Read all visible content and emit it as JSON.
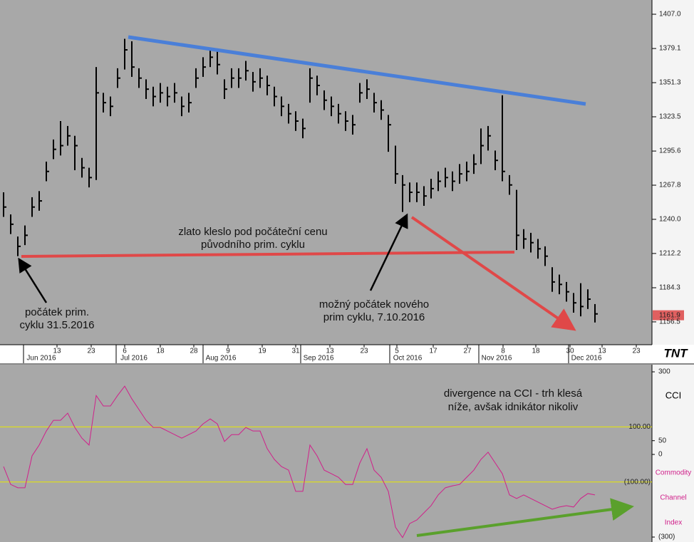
{
  "chart_data": [
    {
      "type": "ohlc",
      "annotations": [
        [
          "zlato kleslo pod počáteční cenu",
          "původního prim. cyklu"
        ],
        [
          "počátek prim.",
          "cyklu 31.5.2016"
        ],
        [
          "možný počátek nového",
          "prim cyklu, 7.10.2016"
        ]
      ],
      "high": [
        1262,
        1244,
        1226,
        1235,
        1258,
        1263,
        1287,
        1305,
        1320,
        1316,
        1308,
        1290,
        1282,
        1364,
        1343,
        1340,
        1363,
        1387,
        1385,
        1363,
        1354,
        1348,
        1351,
        1348,
        1351,
        1340,
        1343,
        1363,
        1372,
        1380,
        1377,
        1354,
        1363,
        1363,
        1369,
        1360,
        1363,
        1357,
        1348,
        1340,
        1334,
        1328,
        1322,
        1363,
        1357,
        1345,
        1340,
        1334,
        1328,
        1325,
        1351,
        1354,
        1343,
        1337,
        1325,
        1300,
        1276,
        1270,
        1270,
        1267,
        1273,
        1279,
        1282,
        1279,
        1285,
        1287,
        1293,
        1314,
        1316,
        1296,
        1341,
        1276,
        1264,
        1232,
        1229,
        1224,
        1218,
        1201,
        1195,
        1189,
        1180,
        1188,
        1183,
        1171
      ],
      "low": [
        1242,
        1228,
        1210,
        1219,
        1242,
        1247,
        1271,
        1289,
        1292,
        1300,
        1280,
        1274,
        1266,
        1272,
        1327,
        1324,
        1347,
        1362,
        1356,
        1347,
        1338,
        1332,
        1335,
        1332,
        1335,
        1324,
        1327,
        1347,
        1356,
        1364,
        1358,
        1338,
        1347,
        1347,
        1353,
        1344,
        1347,
        1341,
        1332,
        1324,
        1318,
        1312,
        1306,
        1335,
        1341,
        1329,
        1324,
        1318,
        1312,
        1309,
        1335,
        1338,
        1327,
        1321,
        1295,
        1269,
        1246,
        1254,
        1254,
        1251,
        1257,
        1263,
        1266,
        1263,
        1269,
        1271,
        1277,
        1285,
        1296,
        1280,
        1271,
        1260,
        1215,
        1216,
        1213,
        1208,
        1202,
        1181,
        1179,
        1173,
        1164,
        1161,
        1167,
        1156
      ],
      "close": [
        1250,
        1236,
        1218,
        1227,
        1250,
        1255,
        1279,
        1297,
        1300,
        1308,
        1300,
        1282,
        1274,
        1343,
        1335,
        1332,
        1355,
        1378,
        1364,
        1355,
        1346,
        1340,
        1343,
        1340,
        1343,
        1332,
        1335,
        1355,
        1364,
        1372,
        1366,
        1346,
        1355,
        1355,
        1361,
        1352,
        1355,
        1349,
        1340,
        1332,
        1326,
        1320,
        1314,
        1355,
        1349,
        1337,
        1332,
        1326,
        1320,
        1317,
        1343,
        1346,
        1335,
        1329,
        1317,
        1277,
        1268,
        1262,
        1262,
        1259,
        1265,
        1271,
        1274,
        1271,
        1277,
        1279,
        1285,
        1300,
        1308,
        1288,
        1279,
        1268,
        1227,
        1224,
        1221,
        1216,
        1210,
        1189,
        1187,
        1181,
        1172,
        1169,
        1175,
        1163
      ],
      "color": "#000000",
      "ylim": [
        1137.9,
        1418.6
      ],
      "yticks": [
        {
          "value": 1407,
          "label": "1407.0"
        },
        1379.1,
        1351.3,
        1323.5,
        1295.6,
        1267.8,
        {
          "value": 1240,
          "label": "1240.0"
        },
        1212.2,
        1184.3,
        1156.5
      ],
      "last_price": 1161.9,
      "xlim": [
        -0.5,
        91
      ],
      "xticks": [
        {
          "value": 7.5,
          "label": "13"
        },
        {
          "value": 12.3,
          "label": "23"
        },
        {
          "value": 17,
          "label": "6"
        },
        {
          "value": 22,
          "label": "18"
        },
        {
          "value": 26.7,
          "label": "28"
        },
        {
          "value": 31.5,
          "label": "9"
        },
        {
          "value": 36.3,
          "label": "19"
        },
        {
          "value": 41,
          "label": "31"
        },
        {
          "value": 45.8,
          "label": "13"
        },
        {
          "value": 50.6,
          "label": "23"
        },
        {
          "value": 55.2,
          "label": "5"
        },
        {
          "value": 60.3,
          "label": "17"
        },
        {
          "value": 65.1,
          "label": "27"
        },
        {
          "value": 70.1,
          "label": "8"
        },
        {
          "value": 74.7,
          "label": "18"
        },
        {
          "value": 79.5,
          "label": "30"
        },
        {
          "value": 84,
          "label": "13"
        },
        {
          "value": 88.8,
          "label": "23"
        }
      ],
      "month_ticks": [
        {
          "value": 2.8,
          "label": "Jun 2016"
        },
        {
          "value": 15.8,
          "label": "Jul 2016"
        },
        {
          "value": 28,
          "label": "Aug 2016"
        },
        {
          "value": 41.7,
          "label": "Sep 2016"
        },
        {
          "value": 54.2,
          "label": "Oct 2016"
        },
        {
          "value": 66.7,
          "label": "Nov 2016"
        },
        {
          "value": 79.3,
          "label": "Dec 2016"
        }
      ],
      "logo": "TNT"
    },
    {
      "type": "line",
      "title": "CCI",
      "indicator_name": [
        "Commodity",
        "Channel",
        "Index"
      ],
      "annotations": [
        [
          "divergence na CCI - trh klesá",
          "níže, avšak idnikátor nikoliv"
        ]
      ],
      "color": "#d0208a",
      "values": [
        -44,
        -109,
        -121,
        -121,
        -5,
        34,
        85,
        124,
        124,
        150,
        98,
        59,
        34,
        214,
        176,
        176,
        214,
        248,
        202,
        163,
        124,
        98,
        98,
        85,
        72,
        59,
        72,
        85,
        111,
        129,
        111,
        47,
        72,
        72,
        98,
        85,
        85,
        21,
        -18,
        -44,
        -57,
        -134,
        -134,
        34,
        -5,
        -57,
        -70,
        -83,
        -109,
        -109,
        -31,
        21,
        -57,
        -83,
        -134,
        -264,
        -302,
        -251,
        -238,
        -212,
        -186,
        -147,
        -121,
        -114,
        -109,
        -83,
        -57,
        -18,
        8,
        -31,
        -70,
        -147,
        -160,
        -147,
        -160,
        -173,
        -186,
        -199,
        -191,
        -186,
        -191,
        -160,
        -142,
        -147
      ],
      "ylim": [
        -318,
        326
      ],
      "yticks": [
        300,
        50,
        0,
        {
          "value": -300,
          "label": "(300)"
        }
      ],
      "levels": [
        {
          "value": 100,
          "label": "100.00"
        },
        {
          "value": -100,
          "label": "(100.00)"
        }
      ],
      "level_color": "#e8e800"
    }
  ]
}
